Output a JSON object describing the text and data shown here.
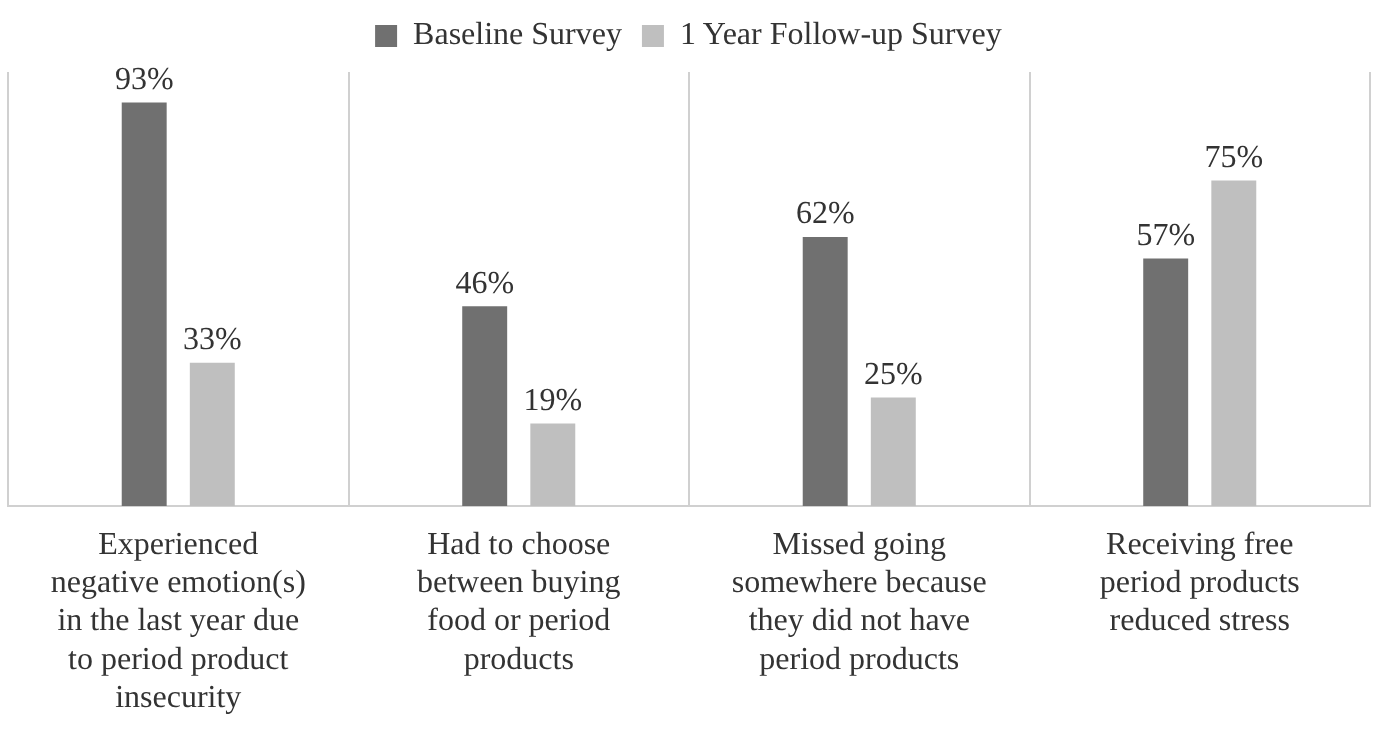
{
  "chart_data": {
    "type": "bar",
    "categories": [
      "Experienced negative emotion(s) in the last year due to period product insecurity",
      "Had to choose between buying food or period products",
      "Missed going somewhere because they did not have period products",
      "Receiving free period products reduced stress"
    ],
    "series": [
      {
        "name": "Baseline Survey",
        "color": "#707070",
        "values": [
          93,
          46,
          62,
          57
        ],
        "value_labels": [
          "93%",
          "46%",
          "62%",
          "57%"
        ]
      },
      {
        "name": "1 Year Follow-up Survey",
        "color": "#bfbfbf",
        "values": [
          33,
          19,
          25,
          75
        ],
        "value_labels": [
          "33%",
          "19%",
          "25%",
          "75%"
        ]
      }
    ],
    "grid": "x",
    "legend": "top"
  }
}
